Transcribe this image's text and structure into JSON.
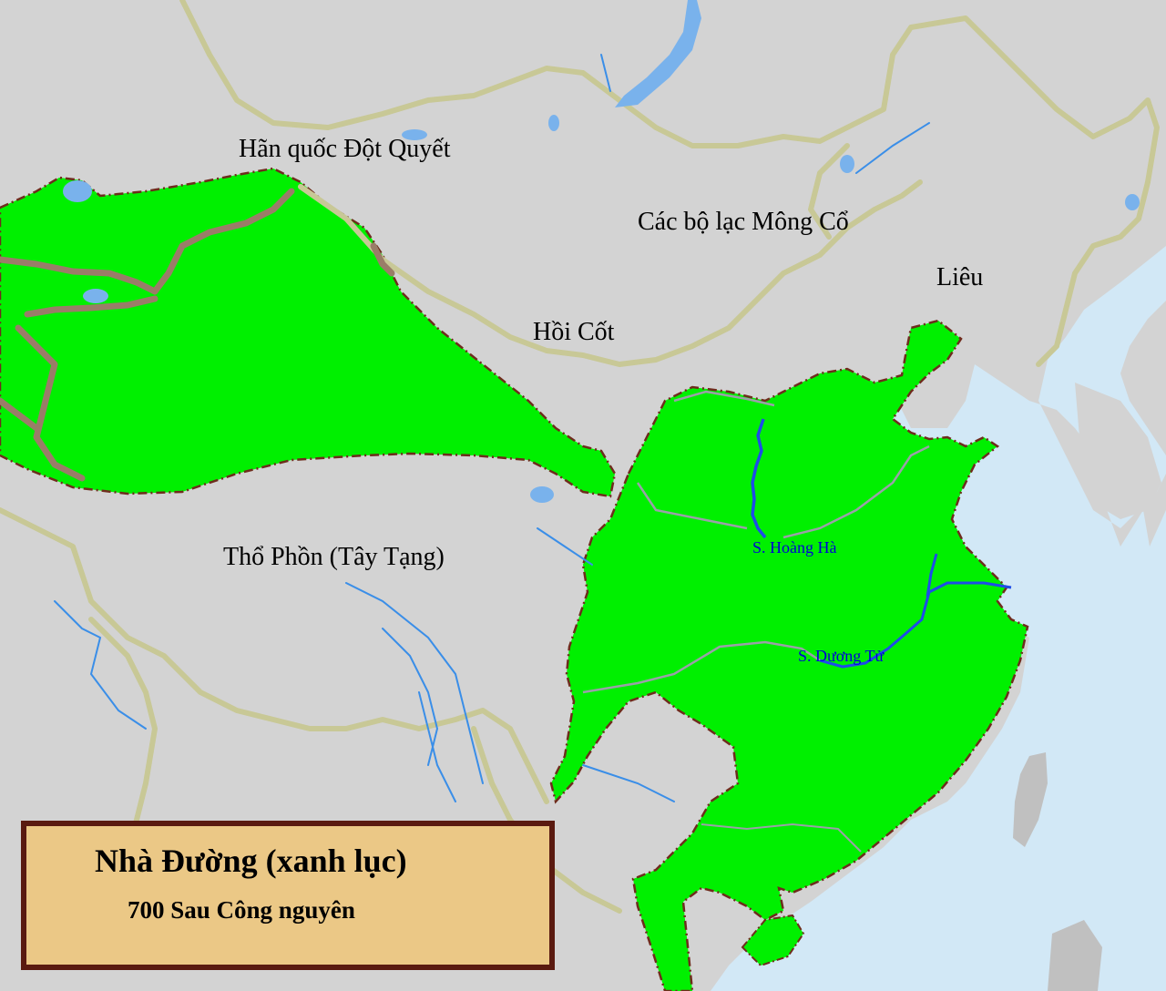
{
  "legend": {
    "title": "Nhà Đường (xanh lục)",
    "subtitle": "700 Sau Công nguyên"
  },
  "regions": {
    "turkic": "Hãn quốc Đột Quyết",
    "mongol": "Các bộ lạc Mông Cổ",
    "liao": "Liêu",
    "uyghur": "Hồi Cốt",
    "tibet": "Thổ Phồn (Tây Tạng)"
  },
  "rivers": {
    "yellow": "S. Hoàng Hà",
    "yangtze": "S. Dương Tử"
  },
  "colors": {
    "sea": "#d2e8f6",
    "land": "#d3d3d3",
    "tang": "#00f000",
    "border_dark": "#6e2c1c",
    "border_tan": "#c8c896",
    "river": "#3a8ee8",
    "legend_fill": "#ebc886",
    "legend_stroke": "#5a1a10",
    "river_label": "#0000d8"
  }
}
